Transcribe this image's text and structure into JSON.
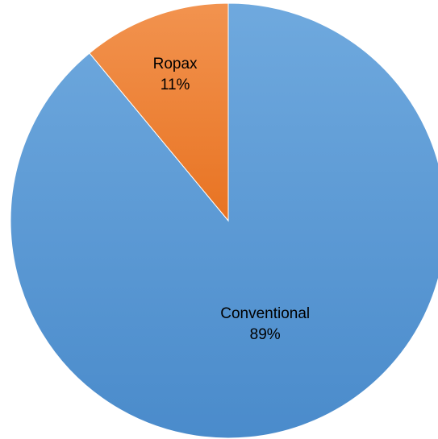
{
  "chart_data": {
    "type": "pie",
    "slices": [
      {
        "name": "Conventional",
        "value": 89,
        "label": "89%",
        "color": "#5b9bd5"
      },
      {
        "name": "Ropax",
        "value": 11,
        "label": "11%",
        "color": "#ed7d31"
      }
    ]
  }
}
